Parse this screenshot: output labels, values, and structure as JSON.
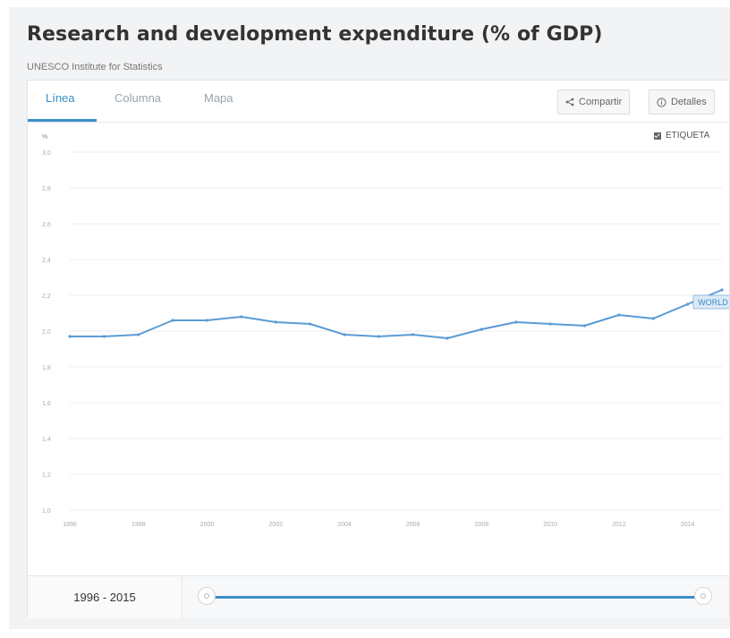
{
  "header": {
    "title": "Research and development expenditure (% of GDP)",
    "source": "UNESCO Institute for Statistics"
  },
  "tabs": [
    {
      "label": "Línea",
      "active": true
    },
    {
      "label": "Columna",
      "active": false
    },
    {
      "label": "Mapa",
      "active": false
    }
  ],
  "toolbar": {
    "share_label": "Compartir",
    "details_label": "Detalles",
    "share_icon": "share-icon",
    "details_icon": "info-icon"
  },
  "chart_options": {
    "label_toggle": "ETIQUETA",
    "label_toggle_checked": true
  },
  "footer": {
    "range_label": "1996 - 2015",
    "range_start": 1996,
    "range_end": 2015
  },
  "colors": {
    "accent": "#3a8ec9",
    "line": "#5b9bd5",
    "panel_bg": "#f2f3f5"
  },
  "chart_data": {
    "type": "line",
    "title": "",
    "xlabel": "",
    "ylabel": "%",
    "x": [
      1996,
      1997,
      1998,
      1999,
      2000,
      2001,
      2002,
      2003,
      2004,
      2005,
      2006,
      2007,
      2008,
      2009,
      2010,
      2011,
      2012,
      2013,
      2014,
      2015
    ],
    "series": [
      {
        "name": "WORLD",
        "values": [
          1.97,
          1.97,
          1.98,
          2.06,
          2.06,
          2.08,
          2.05,
          2.04,
          1.98,
          1.97,
          1.98,
          1.96,
          2.01,
          2.05,
          2.04,
          2.03,
          2.09,
          2.07,
          2.15,
          2.23
        ]
      }
    ],
    "ylim": [
      1.0,
      3.0
    ],
    "yticks": [
      1.0,
      1.2,
      1.4,
      1.6,
      1.8,
      2.0,
      2.2,
      2.4,
      2.6,
      2.8,
      3.0
    ],
    "ytick_labels": [
      "1,0",
      "1,2",
      "1,4",
      "1,6",
      "1,8",
      "2,0",
      "2,2",
      "2,4",
      "2,6",
      "2,8",
      "3,0"
    ],
    "xticks": [
      1996,
      1998,
      2000,
      2002,
      2004,
      2006,
      2008,
      2010,
      2012,
      2014
    ],
    "grid": true,
    "end_label": "WORLD"
  }
}
